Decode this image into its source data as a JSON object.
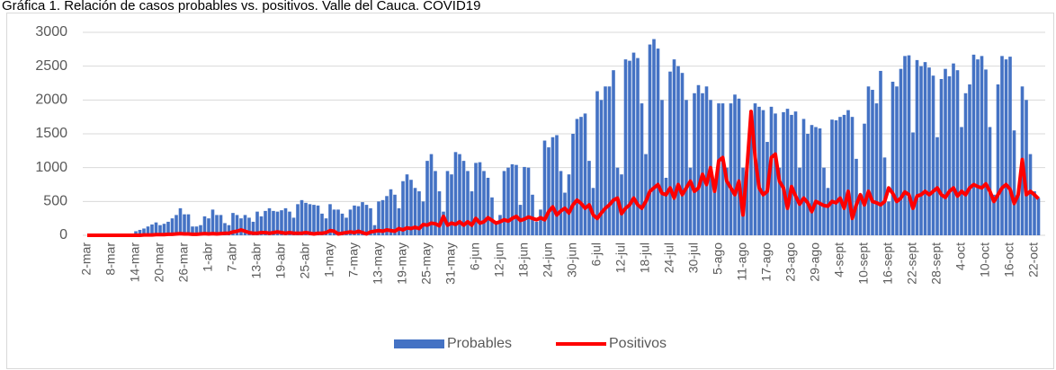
{
  "chart_data": {
    "type": "bar_line",
    "title": "Gráfica 1. Relación de casos probables vs. positivos. Valle del Cauca. COVID19",
    "categories": [
      "2-mar",
      null,
      null,
      null,
      null,
      null,
      "8-mar",
      null,
      null,
      null,
      null,
      null,
      "14-mar",
      null,
      null,
      null,
      null,
      null,
      "20-mar",
      null,
      null,
      null,
      null,
      null,
      "26-mar",
      null,
      null,
      null,
      null,
      null,
      "1-abr",
      null,
      null,
      null,
      null,
      null,
      "7-abr",
      null,
      null,
      null,
      null,
      null,
      "13-abr",
      null,
      null,
      null,
      null,
      null,
      "19-abr",
      null,
      null,
      null,
      null,
      null,
      "25-abr",
      null,
      null,
      null,
      null,
      null,
      "1-may",
      null,
      null,
      null,
      null,
      null,
      "7-may",
      null,
      null,
      null,
      null,
      null,
      "13-may",
      null,
      null,
      null,
      null,
      null,
      "19-may",
      null,
      null,
      null,
      null,
      null,
      "25-may",
      null,
      null,
      null,
      null,
      null,
      "31-may",
      null,
      null,
      null,
      null,
      null,
      "6-jun",
      null,
      null,
      null,
      null,
      null,
      "12-jun",
      null,
      null,
      null,
      null,
      null,
      "18-jun",
      null,
      null,
      null,
      null,
      null,
      "24-jun",
      null,
      null,
      null,
      null,
      null,
      "30-jun",
      null,
      null,
      null,
      null,
      null,
      "6-jul",
      null,
      null,
      null,
      null,
      null,
      "12-jul",
      null,
      null,
      null,
      null,
      null,
      "18-jul",
      null,
      null,
      null,
      null,
      null,
      "24-jul",
      null,
      null,
      null,
      null,
      null,
      "30-jul",
      null,
      null,
      null,
      null,
      null,
      "5-ago",
      null,
      null,
      null,
      null,
      null,
      "11-ago",
      null,
      null,
      null,
      null,
      null,
      "17-ago",
      null,
      null,
      null,
      null,
      null,
      "23-ago",
      null,
      null,
      null,
      null,
      null,
      "29-ago",
      null,
      null,
      null,
      null,
      null,
      "4-sept",
      null,
      null,
      null,
      null,
      null,
      "10-sept",
      null,
      null,
      null,
      null,
      null,
      "16-sept",
      null,
      null,
      null,
      null,
      null,
      "22-sept",
      null,
      null,
      null,
      null,
      null,
      "28-sept",
      null,
      null,
      null,
      null,
      null,
      "4-oct",
      null,
      null,
      null,
      null,
      null,
      "10-oct",
      null,
      null,
      null,
      null,
      null,
      "16-oct",
      null,
      null,
      null,
      null,
      null,
      "22-oct",
      null
    ],
    "series": [
      {
        "name": "Probables",
        "color": "#4472c4",
        "kind": "bar",
        "values": [
          0,
          0,
          0,
          0,
          0,
          0,
          0,
          0,
          0,
          0,
          0,
          0,
          60,
          80,
          100,
          130,
          160,
          190,
          150,
          170,
          200,
          250,
          300,
          400,
          310,
          310,
          130,
          130,
          150,
          280,
          250,
          380,
          300,
          300,
          180,
          150,
          330,
          300,
          250,
          300,
          260,
          200,
          350,
          280,
          360,
          400,
          360,
          350,
          370,
          400,
          350,
          260,
          460,
          520,
          480,
          460,
          450,
          440,
          320,
          250,
          460,
          380,
          380,
          320,
          260,
          380,
          440,
          430,
          490,
          450,
          400,
          150,
          500,
          520,
          580,
          680,
          600,
          400,
          800,
          900,
          820,
          700,
          650,
          500,
          1100,
          1200,
          950,
          650,
          350,
          950,
          900,
          1230,
          1200,
          1100,
          950,
          650,
          1070,
          1080,
          950,
          850,
          560,
          200,
          300,
          950,
          1000,
          1050,
          1040,
          450,
          1010,
          1000,
          600,
          200,
          380,
          1400,
          1300,
          1450,
          1480,
          950,
          630,
          900,
          1500,
          1720,
          1750,
          1800,
          1100,
          700,
          2130,
          2000,
          2200,
          2200,
          2440,
          1000,
          900,
          2600,
          2580,
          2700,
          2620,
          1950,
          1200,
          2820,
          2900,
          2760,
          2000,
          850,
          2420,
          2600,
          2500,
          2400,
          2000,
          1000,
          2100,
          2220,
          2100,
          2200,
          2000,
          800,
          1950,
          1950,
          1000,
          1950,
          2080,
          2020,
          1000,
          1000,
          1580,
          1950,
          1900,
          1850,
          1380,
          1900,
          1800,
          1000,
          1820,
          1870,
          1780,
          1830,
          1000,
          1720,
          1500,
          1630,
          1600,
          1580,
          1000,
          700,
          1710,
          1700,
          1750,
          1780,
          1850,
          1750,
          1130,
          600,
          1650,
          2200,
          2150,
          1950,
          2430,
          1150,
          500,
          2270,
          2200,
          2460,
          2650,
          2660,
          1520,
          2590,
          2500,
          2560,
          2480,
          2360,
          1450,
          2310,
          2460,
          2350,
          2540,
          2440,
          1600,
          2100,
          2230,
          2670,
          2600,
          2650,
          2450,
          1600,
          600,
          2230,
          2650,
          2600,
          2640,
          1550,
          600,
          2200,
          2000,
          1200,
          650,
          550
        ]
      },
      {
        "name": "Positivos",
        "color": "#ff0000",
        "kind": "line",
        "values": [
          0,
          0,
          0,
          0,
          0,
          0,
          0,
          0,
          0,
          0,
          0,
          0,
          0,
          0,
          5,
          5,
          5,
          10,
          10,
          10,
          15,
          15,
          20,
          25,
          20,
          20,
          15,
          15,
          20,
          25,
          20,
          25,
          20,
          25,
          30,
          30,
          50,
          60,
          80,
          60,
          40,
          30,
          30,
          40,
          40,
          30,
          40,
          50,
          40,
          30,
          40,
          30,
          30,
          30,
          40,
          30,
          20,
          30,
          30,
          40,
          70,
          60,
          20,
          30,
          40,
          50,
          40,
          60,
          40,
          20,
          50,
          60,
          70,
          60,
          80,
          70,
          60,
          100,
          80,
          110,
          100,
          120,
          100,
          160,
          150,
          180,
          170,
          140,
          280,
          150,
          180,
          160,
          200,
          150,
          200,
          150,
          250,
          180,
          200,
          260,
          220,
          180,
          200,
          230,
          210,
          250,
          280,
          220,
          240,
          270,
          250,
          230,
          260,
          230,
          350,
          420,
          300,
          360,
          400,
          330,
          450,
          520,
          470,
          400,
          450,
          300,
          250,
          330,
          400,
          450,
          520,
          550,
          320,
          400,
          450,
          550,
          450,
          400,
          500,
          650,
          700,
          750,
          620,
          600,
          700,
          550,
          750,
          600,
          700,
          800,
          650,
          700,
          900,
          750,
          1000,
          650,
          1100,
          1150,
          800,
          700,
          600,
          800,
          300,
          1000,
          1830,
          1150,
          700,
          600,
          650,
          1150,
          1200,
          800,
          700,
          400,
          720,
          580,
          460,
          550,
          480,
          350,
          500,
          470,
          440,
          430,
          500,
          480,
          550,
          400,
          650,
          250,
          450,
          600,
          450,
          650,
          500,
          480,
          450,
          500,
          700,
          620,
          500,
          550,
          640,
          600,
          400,
          580,
          600,
          650,
          600,
          650,
          700,
          600,
          560,
          650,
          700,
          580,
          650,
          600,
          700,
          750,
          720,
          700,
          760,
          650,
          500,
          600,
          700,
          750,
          680,
          470,
          600,
          1120,
          600,
          650,
          600,
          540
        ]
      }
    ],
    "ylim": [
      0,
      3000
    ],
    "yticks": [
      0,
      500,
      1000,
      1500,
      2000,
      2500,
      3000
    ],
    "grid": true,
    "legend": "bottom"
  }
}
